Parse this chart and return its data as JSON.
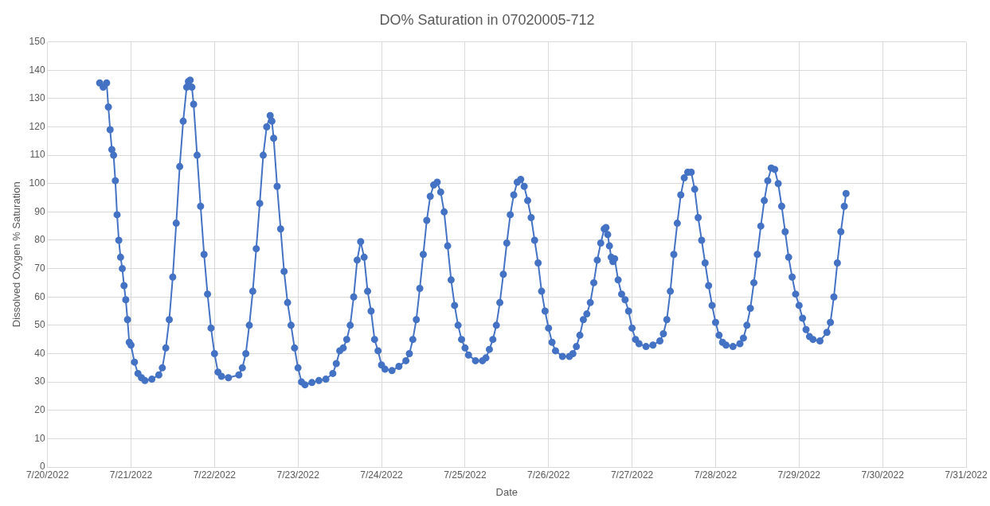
{
  "chart_data": {
    "type": "line",
    "title": "DO% Saturation in 07020005-712",
    "xlabel": "Date",
    "ylabel": "Dissolved Oxygen % Saturation",
    "color": "#4472c4",
    "marker": "circle",
    "line_style": "solid",
    "grid": true,
    "x": [
      "2022-07-20T15:00",
      "2022-07-20T16:00",
      "2022-07-20T17:00",
      "2022-07-20T17:30",
      "2022-07-20T18:00",
      "2022-07-20T18:30",
      "2022-07-20T19:00",
      "2022-07-20T19:30",
      "2022-07-20T20:00",
      "2022-07-20T20:30",
      "2022-07-20T21:00",
      "2022-07-20T21:30",
      "2022-07-20T22:00",
      "2022-07-20T22:30",
      "2022-07-20T23:00",
      "2022-07-20T23:30",
      "2022-07-21T00:00",
      "2022-07-21T01:00",
      "2022-07-21T02:00",
      "2022-07-21T03:00",
      "2022-07-21T04:00",
      "2022-07-21T06:00",
      "2022-07-21T08:00",
      "2022-07-21T09:00",
      "2022-07-21T10:00",
      "2022-07-21T11:00",
      "2022-07-21T12:00",
      "2022-07-21T13:00",
      "2022-07-21T14:00",
      "2022-07-21T15:00",
      "2022-07-21T16:00",
      "2022-07-21T16:30",
      "2022-07-21T17:00",
      "2022-07-21T17:30",
      "2022-07-21T18:00",
      "2022-07-21T19:00",
      "2022-07-21T20:00",
      "2022-07-21T21:00",
      "2022-07-21T22:00",
      "2022-07-21T23:00",
      "2022-07-22T00:00",
      "2022-07-22T01:00",
      "2022-07-22T02:00",
      "2022-07-22T04:00",
      "2022-07-22T07:00",
      "2022-07-22T08:00",
      "2022-07-22T09:00",
      "2022-07-22T10:00",
      "2022-07-22T11:00",
      "2022-07-22T12:00",
      "2022-07-22T13:00",
      "2022-07-22T14:00",
      "2022-07-22T15:00",
      "2022-07-22T16:00",
      "2022-07-22T16:30",
      "2022-07-22T17:00",
      "2022-07-22T18:00",
      "2022-07-22T19:00",
      "2022-07-22T20:00",
      "2022-07-22T21:00",
      "2022-07-22T22:00",
      "2022-07-22T23:00",
      "2022-07-23T00:00",
      "2022-07-23T01:00",
      "2022-07-23T02:00",
      "2022-07-23T04:00",
      "2022-07-23T06:00",
      "2022-07-23T08:00",
      "2022-07-23T10:00",
      "2022-07-23T11:00",
      "2022-07-23T12:00",
      "2022-07-23T13:00",
      "2022-07-23T14:00",
      "2022-07-23T15:00",
      "2022-07-23T16:00",
      "2022-07-23T17:00",
      "2022-07-23T18:00",
      "2022-07-23T19:00",
      "2022-07-23T20:00",
      "2022-07-23T21:00",
      "2022-07-23T22:00",
      "2022-07-23T23:00",
      "2022-07-24T00:00",
      "2022-07-24T01:00",
      "2022-07-24T03:00",
      "2022-07-24T05:00",
      "2022-07-24T07:00",
      "2022-07-24T08:00",
      "2022-07-24T09:00",
      "2022-07-24T10:00",
      "2022-07-24T11:00",
      "2022-07-24T12:00",
      "2022-07-24T13:00",
      "2022-07-24T14:00",
      "2022-07-24T15:00",
      "2022-07-24T16:00",
      "2022-07-24T17:00",
      "2022-07-24T18:00",
      "2022-07-24T19:00",
      "2022-07-24T20:00",
      "2022-07-24T21:00",
      "2022-07-24T22:00",
      "2022-07-24T23:00",
      "2022-07-25T00:00",
      "2022-07-25T01:00",
      "2022-07-25T03:00",
      "2022-07-25T05:00",
      "2022-07-25T06:00",
      "2022-07-25T07:00",
      "2022-07-25T08:00",
      "2022-07-25T09:00",
      "2022-07-25T10:00",
      "2022-07-25T11:00",
      "2022-07-25T12:00",
      "2022-07-25T13:00",
      "2022-07-25T14:00",
      "2022-07-25T15:00",
      "2022-07-25T16:00",
      "2022-07-25T17:00",
      "2022-07-25T18:00",
      "2022-07-25T19:00",
      "2022-07-25T20:00",
      "2022-07-25T21:00",
      "2022-07-25T22:00",
      "2022-07-25T23:00",
      "2022-07-26T00:00",
      "2022-07-26T01:00",
      "2022-07-26T02:00",
      "2022-07-26T04:00",
      "2022-07-26T06:00",
      "2022-07-26T07:00",
      "2022-07-26T08:00",
      "2022-07-26T09:00",
      "2022-07-26T10:00",
      "2022-07-26T11:00",
      "2022-07-26T12:00",
      "2022-07-26T13:00",
      "2022-07-26T14:00",
      "2022-07-26T15:00",
      "2022-07-26T16:00",
      "2022-07-26T16:30",
      "2022-07-26T17:00",
      "2022-07-26T17:30",
      "2022-07-26T18:00",
      "2022-07-26T18:30",
      "2022-07-26T19:00",
      "2022-07-26T20:00",
      "2022-07-26T21:00",
      "2022-07-26T22:00",
      "2022-07-26T23:00",
      "2022-07-27T00:00",
      "2022-07-27T01:00",
      "2022-07-27T02:00",
      "2022-07-27T04:00",
      "2022-07-27T06:00",
      "2022-07-27T08:00",
      "2022-07-27T09:00",
      "2022-07-27T10:00",
      "2022-07-27T11:00",
      "2022-07-27T12:00",
      "2022-07-27T13:00",
      "2022-07-27T14:00",
      "2022-07-27T15:00",
      "2022-07-27T16:00",
      "2022-07-27T17:00",
      "2022-07-27T18:00",
      "2022-07-27T19:00",
      "2022-07-27T20:00",
      "2022-07-27T21:00",
      "2022-07-27T22:00",
      "2022-07-27T23:00",
      "2022-07-28T00:00",
      "2022-07-28T01:00",
      "2022-07-28T02:00",
      "2022-07-28T03:00",
      "2022-07-28T05:00",
      "2022-07-28T07:00",
      "2022-07-28T08:00",
      "2022-07-28T09:00",
      "2022-07-28T10:00",
      "2022-07-28T11:00",
      "2022-07-28T12:00",
      "2022-07-28T13:00",
      "2022-07-28T14:00",
      "2022-07-28T15:00",
      "2022-07-28T16:00",
      "2022-07-28T17:00",
      "2022-07-28T18:00",
      "2022-07-28T19:00",
      "2022-07-28T20:00",
      "2022-07-28T21:00",
      "2022-07-28T22:00",
      "2022-07-28T23:00",
      "2022-07-29T00:00",
      "2022-07-29T01:00",
      "2022-07-29T02:00",
      "2022-07-29T03:00",
      "2022-07-29T04:00",
      "2022-07-29T06:00",
      "2022-07-29T08:00",
      "2022-07-29T09:00",
      "2022-07-29T10:00",
      "2022-07-29T11:00",
      "2022-07-29T12:00",
      "2022-07-29T13:00",
      "2022-07-29T13:30"
    ],
    "values": [
      135.5,
      134,
      135.5,
      127,
      119,
      112,
      110,
      101,
      89,
      80,
      74,
      70,
      64,
      59,
      52,
      44,
      43,
      37,
      33,
      31.5,
      30.5,
      31,
      32.5,
      35,
      42,
      52,
      67,
      86,
      106,
      122,
      134,
      136,
      136.5,
      134,
      128,
      110,
      92,
      75,
      61,
      49,
      40,
      33.5,
      32,
      31.5,
      32.5,
      35,
      40,
      50,
      62,
      77,
      93,
      110,
      120,
      124,
      122,
      116,
      99,
      84,
      69,
      58,
      50,
      42,
      35,
      30,
      29,
      29.8,
      30.5,
      31,
      33,
      36.5,
      41,
      42,
      45,
      50,
      60,
      73,
      79.5,
      74,
      62,
      55,
      45,
      41,
      36,
      34.5,
      34,
      35.5,
      37.5,
      40,
      45,
      52,
      63,
      75,
      87,
      95.5,
      99.5,
      100.5,
      97,
      90,
      78,
      66,
      57,
      50,
      45,
      42,
      39.5,
      37.5,
      37.5,
      38.5,
      41.5,
      45,
      50,
      58,
      68,
      79,
      89,
      96,
      100.5,
      101.5,
      99,
      94,
      88,
      80,
      72,
      62,
      55,
      49,
      44,
      41,
      39,
      39,
      40,
      42.5,
      46.5,
      52,
      54,
      58,
      65,
      73,
      79,
      84,
      84.5,
      82,
      78,
      74,
      72.5,
      73.5,
      66,
      61,
      59,
      55,
      49,
      45,
      43.5,
      42.5,
      43,
      44.5,
      47,
      52,
      62,
      75,
      86,
      96,
      102,
      104,
      104,
      98,
      88,
      80,
      72,
      64,
      57,
      51,
      46.5,
      44,
      43,
      42.5,
      43.5,
      45.5,
      50,
      56,
      65,
      75,
      85,
      94,
      101,
      105.5,
      105,
      100,
      92,
      83,
      74,
      67,
      61,
      57,
      52.5,
      48.5,
      46,
      45,
      44.5,
      47.5,
      51,
      60,
      72,
      83,
      92,
      96.5
    ],
    "xlim": [
      "2022-07-20",
      "2022-07-31"
    ],
    "xticks": [
      {
        "value": "2022-07-20",
        "label": "7/20/2022"
      },
      {
        "value": "2022-07-21",
        "label": "7/21/2022"
      },
      {
        "value": "2022-07-22",
        "label": "7/22/2022"
      },
      {
        "value": "2022-07-23",
        "label": "7/23/2022"
      },
      {
        "value": "2022-07-24",
        "label": "7/24/2022"
      },
      {
        "value": "2022-07-25",
        "label": "7/25/2022"
      },
      {
        "value": "2022-07-26",
        "label": "7/26/2022"
      },
      {
        "value": "2022-07-27",
        "label": "7/27/2022"
      },
      {
        "value": "2022-07-28",
        "label": "7/28/2022"
      },
      {
        "value": "2022-07-29",
        "label": "7/29/2022"
      },
      {
        "value": "2022-07-30",
        "label": "7/30/2022"
      },
      {
        "value": "2022-07-31",
        "label": "7/31/2022"
      }
    ],
    "ylim": [
      0,
      150
    ],
    "yticks": [
      0,
      10,
      20,
      30,
      40,
      50,
      60,
      70,
      80,
      90,
      100,
      110,
      120,
      130,
      140,
      150
    ]
  }
}
